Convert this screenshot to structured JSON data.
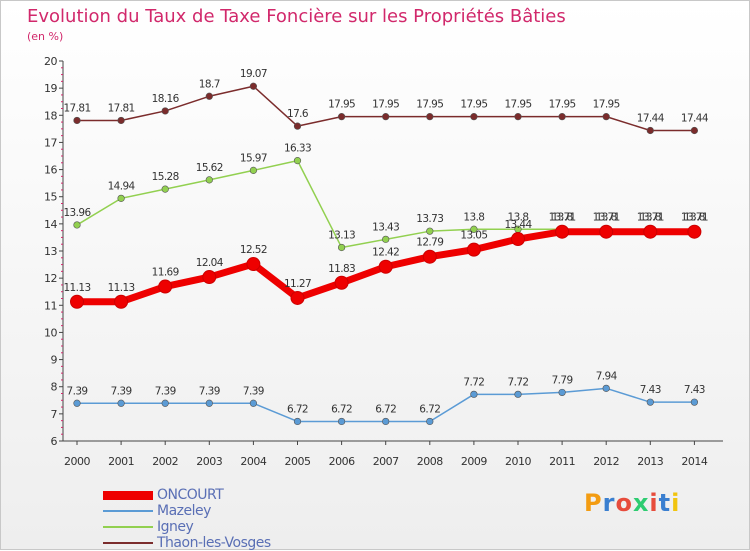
{
  "chart_data": {
    "type": "line",
    "title": "Evolution du Taux de Taxe Foncière sur les Propriétés Bâties",
    "ylabel": "(en %)",
    "xlabel": "",
    "categories": [
      "2000",
      "2001",
      "2002",
      "2003",
      "2004",
      "2005",
      "2006",
      "2007",
      "2008",
      "2009",
      "2010",
      "2011",
      "2012",
      "2013",
      "2014"
    ],
    "ylim": [
      6,
      20
    ],
    "yticks": [
      "6",
      "7",
      "8",
      "9",
      "10",
      "11",
      "12",
      "13",
      "14",
      "15",
      "16",
      "17",
      "18",
      "19",
      "20"
    ],
    "grid": false,
    "legend_position": "bottom-left",
    "series": [
      {
        "name": "ONCOURT",
        "color": "#ee0000",
        "values": [
          11.13,
          11.13,
          11.69,
          12.04,
          12.52,
          11.27,
          11.83,
          12.42,
          12.79,
          13.05,
          13.44,
          13.71,
          13.71,
          13.71,
          13.71
        ],
        "labels": [
          "11.13",
          "11.13",
          "11.69",
          "12.04",
          "12.52",
          "11.27",
          "11.83",
          "12.42",
          "12.79",
          "13.05",
          "13.44",
          "13.71",
          "13.71",
          "13.71",
          "13.71"
        ]
      },
      {
        "name": "Mazeley",
        "color": "#5b9bd5",
        "values": [
          7.39,
          7.39,
          7.39,
          7.39,
          7.39,
          6.72,
          6.72,
          6.72,
          6.72,
          7.72,
          7.72,
          7.79,
          7.94,
          7.43,
          7.43
        ],
        "labels": [
          "7.39",
          "7.39",
          "7.39",
          "7.39",
          "7.39",
          "6.72",
          "6.72",
          "6.72",
          "6.72",
          "7.72",
          "7.72",
          "7.79",
          "7.94",
          "7.43",
          "7.43"
        ]
      },
      {
        "name": "Igney",
        "color": "#92d050",
        "values": [
          13.96,
          14.94,
          15.28,
          15.62,
          15.97,
          16.33,
          13.13,
          13.43,
          13.73,
          13.8,
          13.8,
          13.8,
          13.8,
          13.8,
          13.8
        ],
        "labels": [
          "13.96",
          "14.94",
          "15.28",
          "15.62",
          "15.97",
          "16.33",
          "13.13",
          "13.43",
          "13.73",
          "13.8",
          "13.8",
          "13.8",
          "13.8",
          "13.8",
          "13.8"
        ]
      },
      {
        "name": "Thaon-les-Vosges",
        "color": "#7b2c2c",
        "values": [
          17.81,
          17.81,
          18.16,
          18.7,
          19.07,
          17.6,
          17.95,
          17.95,
          17.95,
          17.95,
          17.95,
          17.95,
          17.95,
          17.44,
          17.44
        ],
        "labels": [
          "17.81",
          "17.81",
          "18.16",
          "18.7",
          "19.07",
          "17.6",
          "17.95",
          "17.95",
          "17.95",
          "17.95",
          "17.95",
          "17.95",
          "17.95",
          "17.44",
          "17.44"
        ]
      }
    ]
  },
  "logo": {
    "letters": [
      "P",
      "r",
      "o",
      "x",
      "i",
      "t",
      "i"
    ],
    "colors": [
      "#f39c12",
      "#3a7fd0",
      "#e74c3c",
      "#2ecc71",
      "#e74c3c",
      "#3a7fd0",
      "#f1c40f"
    ]
  }
}
